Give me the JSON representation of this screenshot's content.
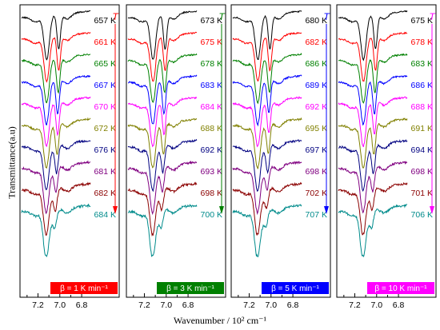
{
  "figure": {
    "y_axis_label": "Transmittance(a.u)",
    "x_axis_label": "Wavenumber / 10² cm⁻¹",
    "temperature_symbol": "T"
  },
  "chart_data": [
    {
      "type": "line",
      "panel": "β = 1 K min⁻¹",
      "badge_color": "#ff0000",
      "arrow_color": "#ff0000",
      "xlim": [
        7.35,
        6.72
      ],
      "xticks": [
        "7.2",
        "7.0",
        "6.8"
      ],
      "series": [
        {
          "name": "657 K",
          "color": "#000000",
          "shift": 0.0,
          "depth": 1.0
        },
        {
          "name": "661 K",
          "color": "#ff0000",
          "shift": 0.0,
          "depth": 1.0
        },
        {
          "name": "665 K",
          "color": "#008000",
          "shift": 0.005,
          "depth": 1.0
        },
        {
          "name": "667 K",
          "color": "#0000ff",
          "shift": 0.01,
          "depth": 1.0
        },
        {
          "name": "670 K",
          "color": "#ff00ff",
          "shift": 0.01,
          "depth": 0.95
        },
        {
          "name": "672 K",
          "color": "#808000",
          "shift": 0.015,
          "depth": 0.9
        },
        {
          "name": "676 K",
          "color": "#000080",
          "shift": 0.02,
          "depth": 0.8
        },
        {
          "name": "681 K",
          "color": "#800080",
          "shift": 0.025,
          "depth": 0.7
        },
        {
          "name": "682 K",
          "color": "#8b0000",
          "shift": 0.03,
          "depth": 0.55
        },
        {
          "name": "684 K",
          "color": "#008b8b",
          "shift": 0.035,
          "depth": 0.35
        }
      ]
    },
    {
      "type": "line",
      "panel": "β = 3 K min⁻¹",
      "badge_color": "#008000",
      "arrow_color": "#008000",
      "xlim": [
        7.35,
        6.72
      ],
      "xticks": [
        "7.2",
        "7.0",
        "6.8"
      ],
      "series": [
        {
          "name": "673 K",
          "color": "#000000",
          "shift": 0.0,
          "depth": 1.0
        },
        {
          "name": "675 K",
          "color": "#ff0000",
          "shift": 0.0,
          "depth": 1.0
        },
        {
          "name": "678 K",
          "color": "#008000",
          "shift": 0.005,
          "depth": 1.0
        },
        {
          "name": "683 K",
          "color": "#0000ff",
          "shift": 0.01,
          "depth": 1.0
        },
        {
          "name": "684 K",
          "color": "#ff00ff",
          "shift": 0.01,
          "depth": 0.95
        },
        {
          "name": "688 K",
          "color": "#808000",
          "shift": 0.015,
          "depth": 0.9
        },
        {
          "name": "692 K",
          "color": "#000080",
          "shift": 0.02,
          "depth": 0.75
        },
        {
          "name": "693 K",
          "color": "#800080",
          "shift": 0.025,
          "depth": 0.65
        },
        {
          "name": "698 K",
          "color": "#8b0000",
          "shift": 0.03,
          "depth": 0.5
        },
        {
          "name": "700 K",
          "color": "#008b8b",
          "shift": 0.035,
          "depth": 0.35
        }
      ]
    },
    {
      "type": "line",
      "panel": "β = 5 K min⁻¹",
      "badge_color": "#0000ff",
      "arrow_color": "#0000ff",
      "xlim": [
        7.35,
        6.72
      ],
      "xticks": [
        "7.2",
        "7.0",
        "6.8"
      ],
      "series": [
        {
          "name": "680 K",
          "color": "#000000",
          "shift": 0.0,
          "depth": 1.0
        },
        {
          "name": "682 K",
          "color": "#ff0000",
          "shift": 0.0,
          "depth": 1.0
        },
        {
          "name": "686 K",
          "color": "#008000",
          "shift": 0.005,
          "depth": 1.0
        },
        {
          "name": "689 K",
          "color": "#0000ff",
          "shift": 0.01,
          "depth": 0.95
        },
        {
          "name": "692 K",
          "color": "#ff00ff",
          "shift": 0.01,
          "depth": 0.9
        },
        {
          "name": "695 K",
          "color": "#808000",
          "shift": 0.015,
          "depth": 0.85
        },
        {
          "name": "697 K",
          "color": "#000080",
          "shift": 0.02,
          "depth": 0.75
        },
        {
          "name": "698 K",
          "color": "#800080",
          "shift": 0.025,
          "depth": 0.6
        },
        {
          "name": "702 K",
          "color": "#8b0000",
          "shift": 0.03,
          "depth": 0.45
        },
        {
          "name": "707 K",
          "color": "#008b8b",
          "shift": 0.035,
          "depth": 0.3
        }
      ]
    },
    {
      "type": "line",
      "panel": "β = 10 K min⁻¹",
      "badge_color": "#ff00ff",
      "arrow_color": "#ff00ff",
      "xlim": [
        7.35,
        6.72
      ],
      "xticks": [
        "7.2",
        "7.0",
        "6.8"
      ],
      "series": [
        {
          "name": "675 K",
          "color": "#000000",
          "shift": 0.0,
          "depth": 1.0
        },
        {
          "name": "678 K",
          "color": "#ff0000",
          "shift": 0.0,
          "depth": 1.0
        },
        {
          "name": "683 K",
          "color": "#008000",
          "shift": 0.005,
          "depth": 1.0
        },
        {
          "name": "686 K",
          "color": "#0000ff",
          "shift": 0.01,
          "depth": 1.0
        },
        {
          "name": "688 K",
          "color": "#ff00ff",
          "shift": 0.01,
          "depth": 0.95
        },
        {
          "name": "691 K",
          "color": "#808000",
          "shift": 0.015,
          "depth": 0.9
        },
        {
          "name": "694 K",
          "color": "#000080",
          "shift": 0.02,
          "depth": 0.8
        },
        {
          "name": "698 K",
          "color": "#800080",
          "shift": 0.025,
          "depth": 0.65
        },
        {
          "name": "701 K",
          "color": "#8b0000",
          "shift": 0.03,
          "depth": 0.5
        },
        {
          "name": "706 K",
          "color": "#008b8b",
          "shift": 0.035,
          "depth": 0.35
        }
      ]
    }
  ]
}
